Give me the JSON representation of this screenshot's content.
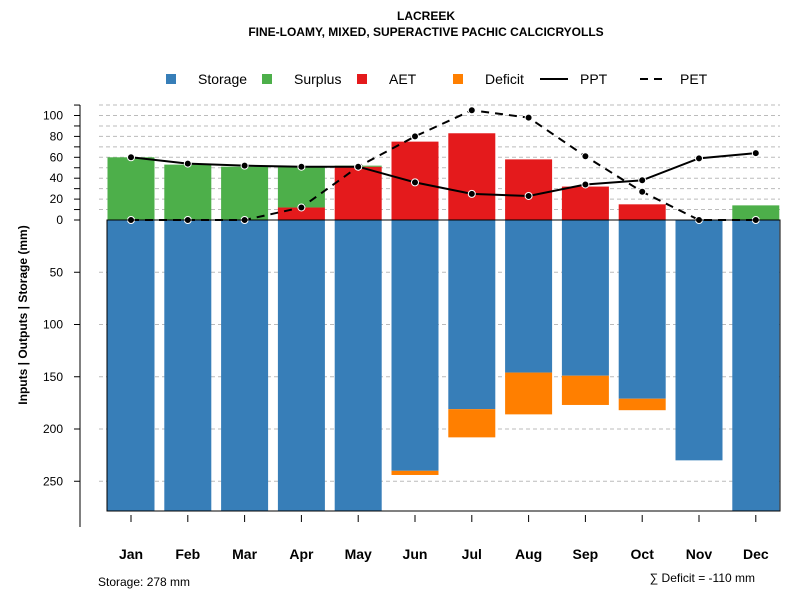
{
  "chart_data": {
    "type": "bar",
    "title": "LACREEK",
    "subtitle": "FINE-LOAMY, MIXED, SUPERACTIVE PACHIC CALCICRYOLLS",
    "ylabel": "Inputs | Outputs | Storage    (mm)",
    "categories": [
      "Jan",
      "Feb",
      "Mar",
      "Apr",
      "May",
      "Jun",
      "Jul",
      "Aug",
      "Sep",
      "Oct",
      "Nov",
      "Dec"
    ],
    "yticks_above": [
      0,
      20,
      40,
      60,
      80,
      100
    ],
    "yticks_below": [
      50,
      100,
      150,
      200,
      250
    ],
    "ylim": [
      -280,
      110
    ],
    "grid": true,
    "legend_position": "top",
    "legend": [
      {
        "name": "Storage",
        "kind": "box",
        "color": "#377EB8"
      },
      {
        "name": "Surplus",
        "kind": "box",
        "color": "#4DAF4A"
      },
      {
        "name": "AET",
        "kind": "box",
        "color": "#E41A1C"
      },
      {
        "name": "Deficit",
        "kind": "box",
        "color": "#FF7F00"
      },
      {
        "name": "PPT",
        "kind": "solid"
      },
      {
        "name": "PET",
        "kind": "dashed"
      }
    ],
    "series": [
      {
        "name": "Storage",
        "values": [
          278,
          278,
          278,
          278,
          278,
          240,
          181,
          146,
          149,
          171,
          230,
          278
        ]
      },
      {
        "name": "Deficit",
        "values": [
          0,
          0,
          0,
          0,
          0,
          4,
          27,
          40,
          28,
          11,
          0,
          0
        ]
      },
      {
        "name": "AET",
        "values": [
          0,
          0,
          0,
          12,
          51,
          75,
          83,
          58,
          32,
          15,
          0,
          0
        ]
      },
      {
        "name": "Surplus",
        "values": [
          60,
          53,
          51,
          39,
          1,
          0,
          0,
          0,
          0,
          0,
          0,
          14
        ]
      },
      {
        "name": "PPT",
        "values": [
          60,
          54,
          52,
          51,
          51,
          36,
          25,
          23,
          34,
          38,
          59,
          64
        ]
      },
      {
        "name": "PET",
        "values": [
          0,
          0,
          0,
          12,
          51,
          80,
          105,
          98,
          61,
          27,
          0,
          0
        ]
      }
    ],
    "footer_left": "Storage: 278 mm",
    "footer_right": "∑ Deficit = -110 mm"
  }
}
